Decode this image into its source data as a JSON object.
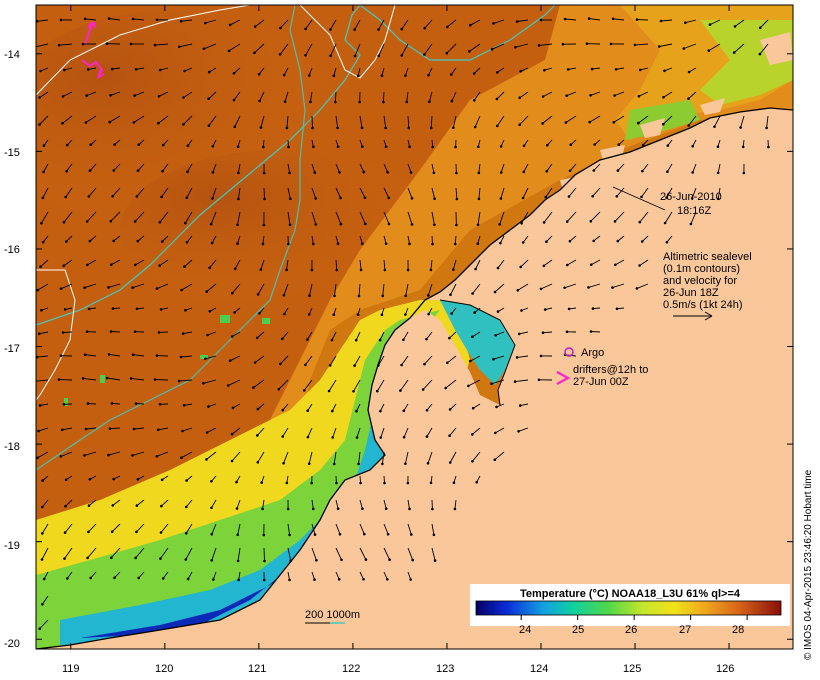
{
  "map": {
    "date_line1": "26-Jun-2010",
    "date_line2": "18:16Z",
    "altimetry_lines": [
      "Altimetric sealevel",
      "(0.1m contours)",
      "and velocity for",
      "26-Jun 18Z",
      "0.5m/s (1kt 24h)"
    ],
    "argo_label": "Argo",
    "drifters_line1": "drifters@12h to",
    "drifters_line2": "27-Jun 00Z",
    "depth_legend": "200  1000m",
    "credit": "© IMOS 04-Apr-2015 23:46:20 Hobart time",
    "colorbar_title": "Temperature (°C) NOAA18_L3U 61% ql>=4",
    "colorbar_ticks": [
      "24",
      "25",
      "26",
      "27",
      "28"
    ],
    "colorbar_range": [
      23.2,
      28.6
    ],
    "colorbar_tick_values": [
      24,
      25,
      26,
      27,
      28
    ],
    "lat_labels": [
      "-14",
      "-15",
      "-16",
      "-17",
      "-18",
      "-19",
      "-20"
    ],
    "lat_values": [
      -14,
      -15,
      -16,
      -17,
      -18,
      -19,
      -20
    ],
    "lon_labels": [
      "119",
      "120",
      "121",
      "122",
      "123",
      "124",
      "125",
      "126"
    ],
    "lon_values": [
      119,
      120,
      121,
      122,
      123,
      124,
      125,
      126
    ],
    "extent": {
      "lon": [
        118.63,
        126.68
      ],
      "lat": [
        -20.1,
        -13.5
      ]
    },
    "colors": {
      "land": "#f9c79a",
      "sst_warm": "#c8620f",
      "sst_mid": "#e2901c",
      "sst_cool": "#9fd12b",
      "sst_cold": "#0b1f9a",
      "contour_200m": "#44c8c0",
      "contour_sealevel": "#ffffff",
      "argo": "#c020c0",
      "drifter": "#ff22cc"
    }
  }
}
